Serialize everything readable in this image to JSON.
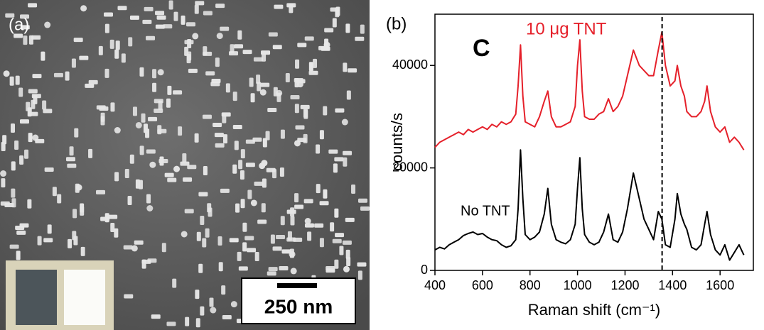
{
  "panel_a": {
    "label": "(a)",
    "scale_bar": "250 nm"
  },
  "chart_data": {
    "type": "line",
    "panel_label": "(b)",
    "x_label": "Raman shift (cm⁻¹)",
    "y_label": "counts/s",
    "annotations": [
      {
        "text": "C",
        "color": "#000000"
      },
      {
        "text": "10 μg TNT",
        "color": "#e5202a"
      },
      {
        "text": "No TNT",
        "color": "#000000"
      }
    ],
    "x": [
      400,
      420,
      440,
      460,
      480,
      500,
      520,
      540,
      560,
      580,
      600,
      620,
      640,
      660,
      680,
      700,
      720,
      740,
      750,
      760,
      770,
      780,
      800,
      820,
      840,
      860,
      875,
      890,
      910,
      930,
      950,
      970,
      990,
      1000,
      1010,
      1020,
      1030,
      1050,
      1070,
      1090,
      1110,
      1130,
      1150,
      1170,
      1190,
      1210,
      1235,
      1260,
      1280,
      1300,
      1320,
      1340,
      1355,
      1370,
      1390,
      1410,
      1420,
      1435,
      1450,
      1460,
      1480,
      1500,
      1520,
      1535,
      1545,
      1560,
      1580,
      1600,
      1620,
      1640,
      1660,
      1680,
      1700
    ],
    "series": [
      {
        "color": "#e5202a",
        "values": [
          24000,
          25000,
          25500,
          26000,
          26500,
          27000,
          26500,
          27500,
          27000,
          27500,
          28000,
          27500,
          28500,
          28000,
          29000,
          28500,
          29000,
          30500,
          36000,
          44000,
          34000,
          29000,
          28500,
          28000,
          30000,
          33000,
          35000,
          30000,
          28000,
          28000,
          28500,
          29000,
          32000,
          40000,
          45000,
          35000,
          30000,
          29500,
          29500,
          30500,
          31000,
          33500,
          31000,
          32000,
          34000,
          38000,
          43000,
          40000,
          39000,
          38000,
          38000,
          43000,
          46500,
          40000,
          36000,
          37000,
          40000,
          36000,
          34000,
          31000,
          30000,
          30000,
          31000,
          33000,
          36000,
          31000,
          28000,
          27000,
          28000,
          25000,
          26000,
          25000,
          23500
        ]
      },
      {
        "color": "#000000",
        "values": [
          4000,
          4500,
          4200,
          5000,
          5500,
          6000,
          6800,
          7200,
          7500,
          7000,
          7200,
          6500,
          6000,
          5800,
          5000,
          4500,
          4800,
          6000,
          12000,
          23500,
          14000,
          7000,
          6000,
          6500,
          7500,
          11000,
          16000,
          9000,
          6000,
          5500,
          5200,
          6000,
          9000,
          16000,
          22000,
          12000,
          7000,
          5500,
          5000,
          5500,
          7500,
          11000,
          6000,
          5500,
          7500,
          12000,
          19000,
          14000,
          10000,
          8000,
          6000,
          11500,
          10000,
          5000,
          4500,
          10000,
          15000,
          11000,
          9000,
          8000,
          4500,
          4000,
          5000,
          9000,
          11500,
          7000,
          4000,
          3000,
          5000,
          2000,
          3500,
          5000,
          3000
        ]
      }
    ],
    "vline": 1356,
    "xlim": [
      400,
      1740
    ],
    "ylim": [
      0,
      50000
    ],
    "xticks": [
      400,
      600,
      800,
      1000,
      1200,
      1400,
      1600
    ],
    "yticks": [
      0,
      20000,
      40000
    ]
  }
}
